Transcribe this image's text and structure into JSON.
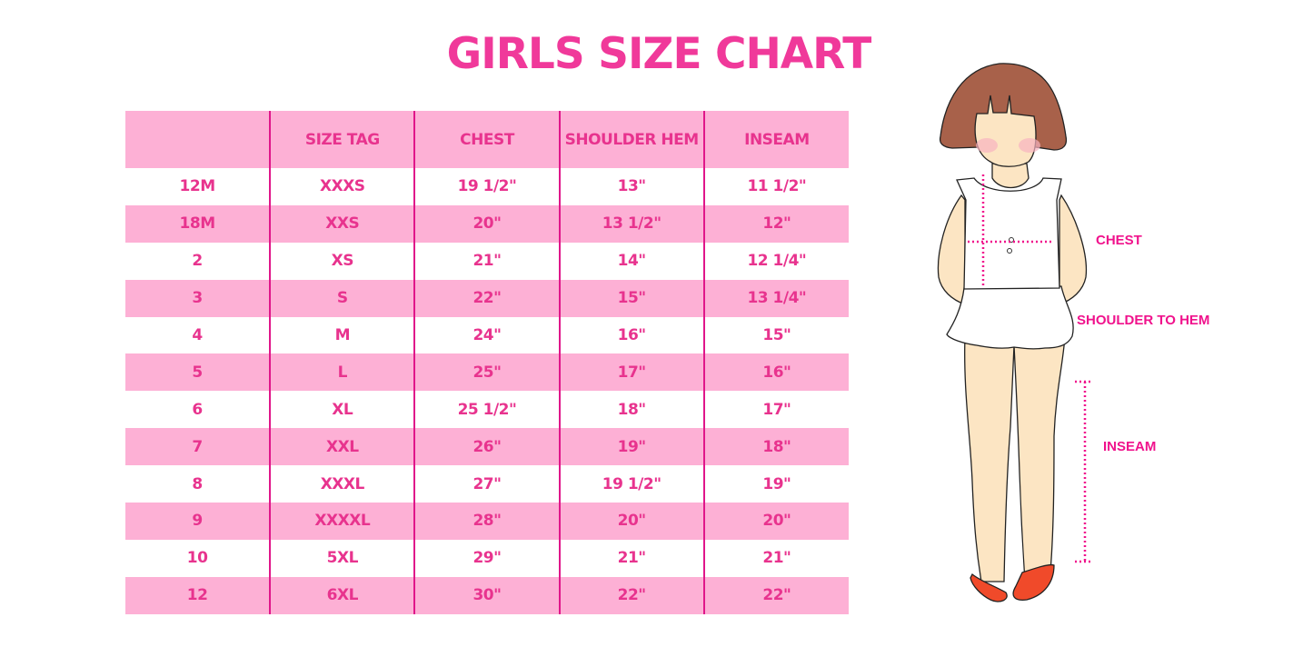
{
  "title": "GIRLS SIZE CHART",
  "table": {
    "headers": [
      "",
      "SIZE TAG",
      "CHEST",
      "SHOULDER HEM",
      "INSEAM"
    ],
    "rows": [
      [
        "12M",
        "XXXS",
        "19 1/2\"",
        "13\"",
        "11 1/2\""
      ],
      [
        "18M",
        "XXS",
        "20\"",
        "13 1/2\"",
        "12\""
      ],
      [
        "2",
        "XS",
        "21\"",
        "14\"",
        "12 1/4\""
      ],
      [
        "3",
        "S",
        "22\"",
        "15\"",
        "13 1/4\""
      ],
      [
        "4",
        "M",
        "24\"",
        "16\"",
        "15\""
      ],
      [
        "5",
        "L",
        "25\"",
        "17\"",
        "16\""
      ],
      [
        "6",
        "XL",
        "25 1/2\"",
        "18\"",
        "17\""
      ],
      [
        "7",
        "XXL",
        "26\"",
        "19\"",
        "18\""
      ],
      [
        "8",
        "XXXL",
        "27\"",
        "19 1/2\"",
        "19\""
      ],
      [
        "9",
        "XXXXL",
        "28\"",
        "20\"",
        "20\""
      ],
      [
        "10",
        "5XL",
        "29\"",
        "21\"",
        "21\""
      ],
      [
        "12",
        "6XL",
        "30\"",
        "22\"",
        "22\""
      ]
    ]
  },
  "illustration": {
    "labels": {
      "chest": "CHEST",
      "shoulder_to_hem": "SHOULDER TO HEM",
      "inseam": "INSEAM"
    }
  },
  "colors": {
    "accent": "#F0399A",
    "row_pink": "#FDB0D5",
    "divider": "#E0168A"
  }
}
